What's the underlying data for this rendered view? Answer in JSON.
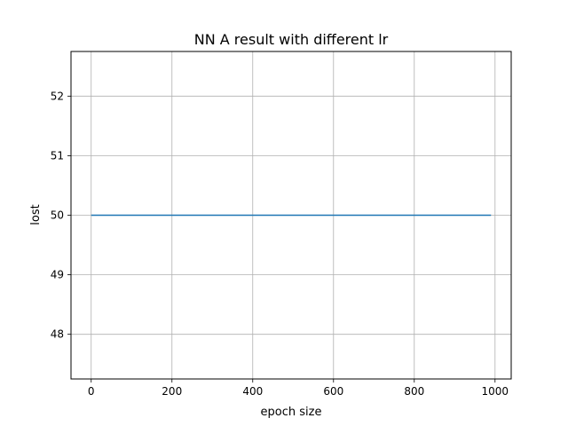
{
  "chart_data": {
    "type": "line",
    "title": "NN A result with different lr",
    "xlabel": "epoch size",
    "ylabel": "lost",
    "xlim": [
      -50,
      1040
    ],
    "ylim": [
      47.25,
      52.75
    ],
    "xticks": [
      0,
      200,
      400,
      600,
      800,
      1000
    ],
    "yticks": [
      48,
      49,
      50,
      51,
      52
    ],
    "grid": true,
    "series": [
      {
        "x": [
          0,
          990
        ],
        "y": [
          50,
          50
        ],
        "color": "#1f77b4"
      }
    ]
  }
}
